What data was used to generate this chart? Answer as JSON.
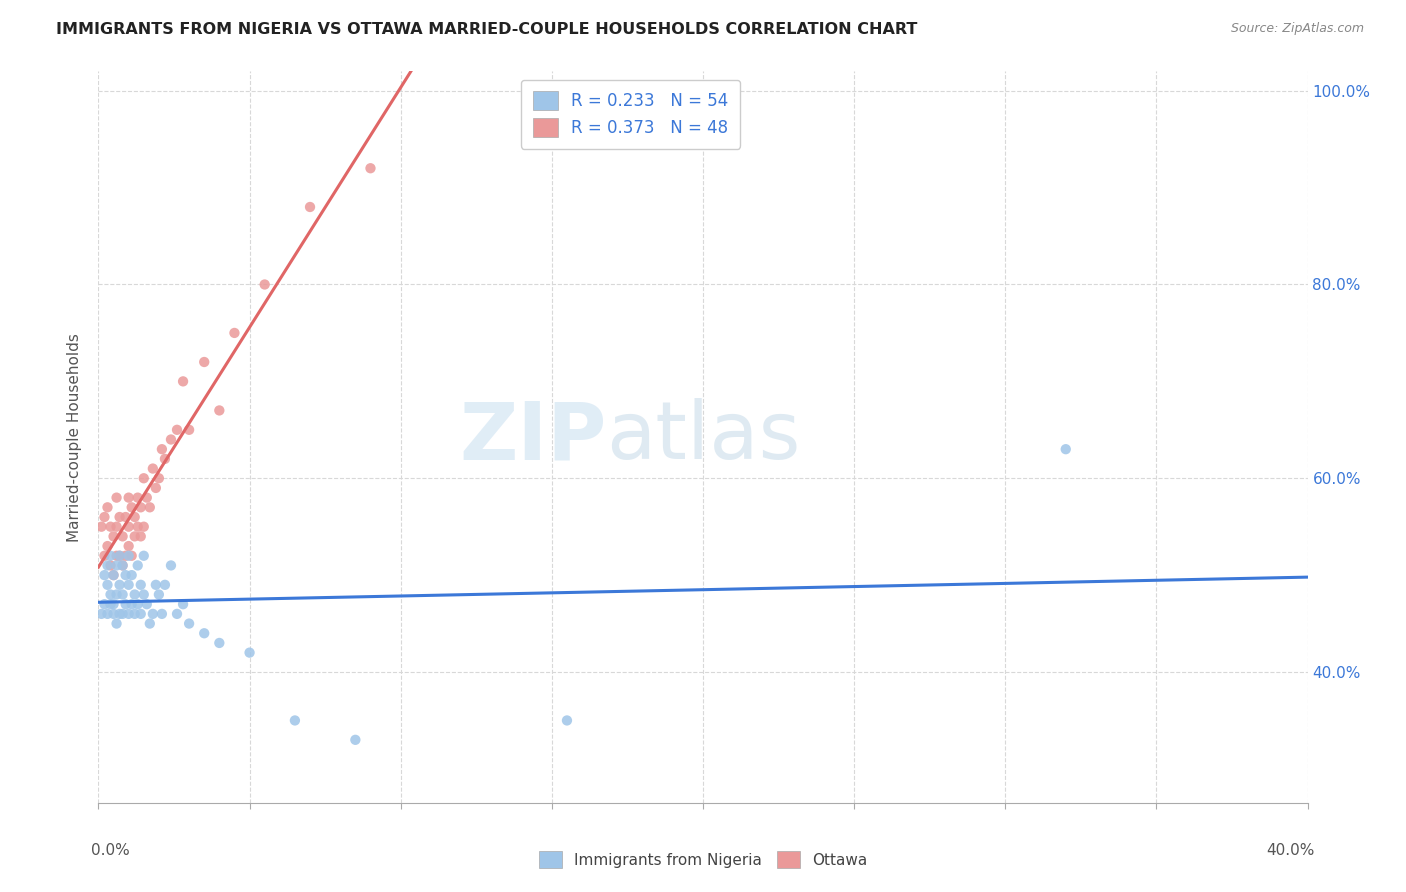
{
  "title": "IMMIGRANTS FROM NIGERIA VS OTTAWA MARRIED-COUPLE HOUSEHOLDS CORRELATION CHART",
  "source": "Source: ZipAtlas.com",
  "ylabel": "Married-couple Households",
  "ytick_vals": [
    0.4,
    0.6,
    0.8,
    1.0
  ],
  "ytick_labels": [
    "40.0%",
    "60.0%",
    "80.0%",
    "100.0%"
  ],
  "xlim": [
    0.0,
    0.4
  ],
  "ylim": [
    0.265,
    1.02
  ],
  "blue_color": "#9fc5e8",
  "pink_color": "#ea9999",
  "scatter_size": 55,
  "blue_line_color": "#3c78d8",
  "pink_line_color": "#e06666",
  "pink_dash_color": "#ccaaaa",
  "watermark_zip": "ZIP",
  "watermark_atlas": "atlas",
  "nigeria_x": [
    0.001,
    0.002,
    0.002,
    0.003,
    0.003,
    0.003,
    0.004,
    0.004,
    0.004,
    0.005,
    0.005,
    0.005,
    0.006,
    0.006,
    0.006,
    0.007,
    0.007,
    0.007,
    0.008,
    0.008,
    0.008,
    0.009,
    0.009,
    0.01,
    0.01,
    0.01,
    0.011,
    0.011,
    0.012,
    0.012,
    0.013,
    0.013,
    0.014,
    0.014,
    0.015,
    0.015,
    0.016,
    0.017,
    0.018,
    0.019,
    0.02,
    0.021,
    0.022,
    0.024,
    0.026,
    0.028,
    0.03,
    0.035,
    0.04,
    0.05,
    0.065,
    0.085,
    0.155,
    0.32
  ],
  "nigeria_y": [
    0.46,
    0.47,
    0.5,
    0.46,
    0.49,
    0.51,
    0.47,
    0.48,
    0.52,
    0.46,
    0.47,
    0.5,
    0.45,
    0.48,
    0.51,
    0.46,
    0.49,
    0.52,
    0.46,
    0.48,
    0.51,
    0.47,
    0.5,
    0.46,
    0.49,
    0.52,
    0.47,
    0.5,
    0.46,
    0.48,
    0.47,
    0.51,
    0.46,
    0.49,
    0.48,
    0.52,
    0.47,
    0.45,
    0.46,
    0.49,
    0.48,
    0.46,
    0.49,
    0.51,
    0.46,
    0.47,
    0.45,
    0.44,
    0.43,
    0.42,
    0.35,
    0.33,
    0.35,
    0.63
  ],
  "ottawa_x": [
    0.001,
    0.002,
    0.002,
    0.003,
    0.003,
    0.004,
    0.004,
    0.005,
    0.005,
    0.006,
    0.006,
    0.006,
    0.007,
    0.007,
    0.008,
    0.008,
    0.009,
    0.009,
    0.01,
    0.01,
    0.01,
    0.011,
    0.011,
    0.012,
    0.012,
    0.013,
    0.013,
    0.014,
    0.014,
    0.015,
    0.015,
    0.016,
    0.017,
    0.018,
    0.019,
    0.02,
    0.021,
    0.022,
    0.024,
    0.026,
    0.028,
    0.03,
    0.035,
    0.04,
    0.045,
    0.055,
    0.07,
    0.09
  ],
  "ottawa_y": [
    0.55,
    0.52,
    0.56,
    0.53,
    0.57,
    0.51,
    0.55,
    0.5,
    0.54,
    0.52,
    0.55,
    0.58,
    0.52,
    0.56,
    0.51,
    0.54,
    0.52,
    0.56,
    0.53,
    0.55,
    0.58,
    0.52,
    0.57,
    0.54,
    0.56,
    0.55,
    0.58,
    0.54,
    0.57,
    0.55,
    0.6,
    0.58,
    0.57,
    0.61,
    0.59,
    0.6,
    0.63,
    0.62,
    0.64,
    0.65,
    0.7,
    0.65,
    0.72,
    0.67,
    0.75,
    0.8,
    0.88,
    0.92
  ]
}
